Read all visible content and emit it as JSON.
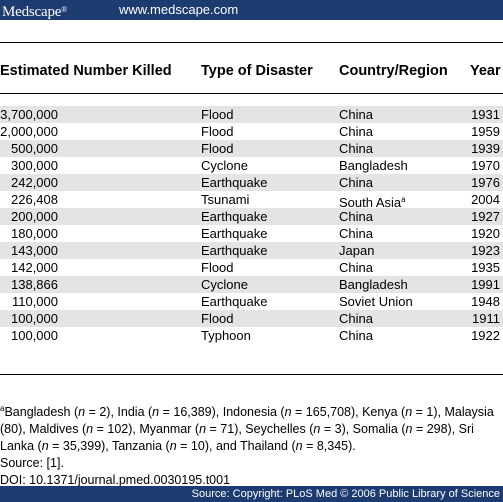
{
  "header": {
    "logo": "Medscape",
    "logo_mark": "®",
    "url": "www.medscape.com"
  },
  "table": {
    "columns": [
      "Estimated Number Killed",
      "Type of Disaster",
      "Country/Region",
      "Year"
    ],
    "rows": [
      {
        "killed": "3,700,000",
        "type": "Flood",
        "country": "China",
        "year": "1931"
      },
      {
        "killed": "2,000,000",
        "type": "Flood",
        "country": "China",
        "year": "1959"
      },
      {
        "killed": "500,000",
        "type": "Flood",
        "country": "China",
        "year": "1939"
      },
      {
        "killed": "300,000",
        "type": "Cyclone",
        "country": "Bangladesh",
        "year": "1970"
      },
      {
        "killed": "242,000",
        "type": "Earthquake",
        "country": "China",
        "year": "1976"
      },
      {
        "killed": "226,408",
        "type": "Tsunami",
        "country": "South Asia",
        "country_sup": "a",
        "year": "2004"
      },
      {
        "killed": "200,000",
        "type": "Earthquake",
        "country": "China",
        "year": "1927"
      },
      {
        "killed": "180,000",
        "type": "Earthquake",
        "country": "China",
        "year": "1920"
      },
      {
        "killed": "143,000",
        "type": "Earthquake",
        "country": "Japan",
        "year": "1923"
      },
      {
        "killed": "142,000",
        "type": "Flood",
        "country": "China",
        "year": "1935"
      },
      {
        "killed": "138,866",
        "type": "Cyclone",
        "country": "Bangladesh",
        "year": "1991"
      },
      {
        "killed": "110,000",
        "type": "Earthquake",
        "country": "Soviet Union",
        "year": "1948"
      },
      {
        "killed": "100,000",
        "type": "Flood",
        "country": "China",
        "year": "1911"
      },
      {
        "killed": "100,000",
        "type": "Typhoon",
        "country": "China",
        "year": "1922"
      }
    ]
  },
  "footnote": {
    "marker": "a",
    "text": "Bangladesh (n = 2), India (n = 16,389), Indonesia (n = 165,708), Kenya (n = 1), Malaysia (80), Maldives (n = 102), Myanmar (n = 71), Seychelles (n = 3), Somalia (n = 298), Sri Lanka (n = 35,399), Tanzania (n = 10), and Thailand (n = 8,345).",
    "source": "Source: [1].",
    "doi": "DOI: 10.1371/journal.pmed.0030195.t001"
  },
  "footer": {
    "source_note": "Source: Copyright: PLoS Med © 2006 Public Library of Science"
  },
  "colors": {
    "bar": "#1c3b70",
    "row_shade": "#e4e4e4"
  }
}
